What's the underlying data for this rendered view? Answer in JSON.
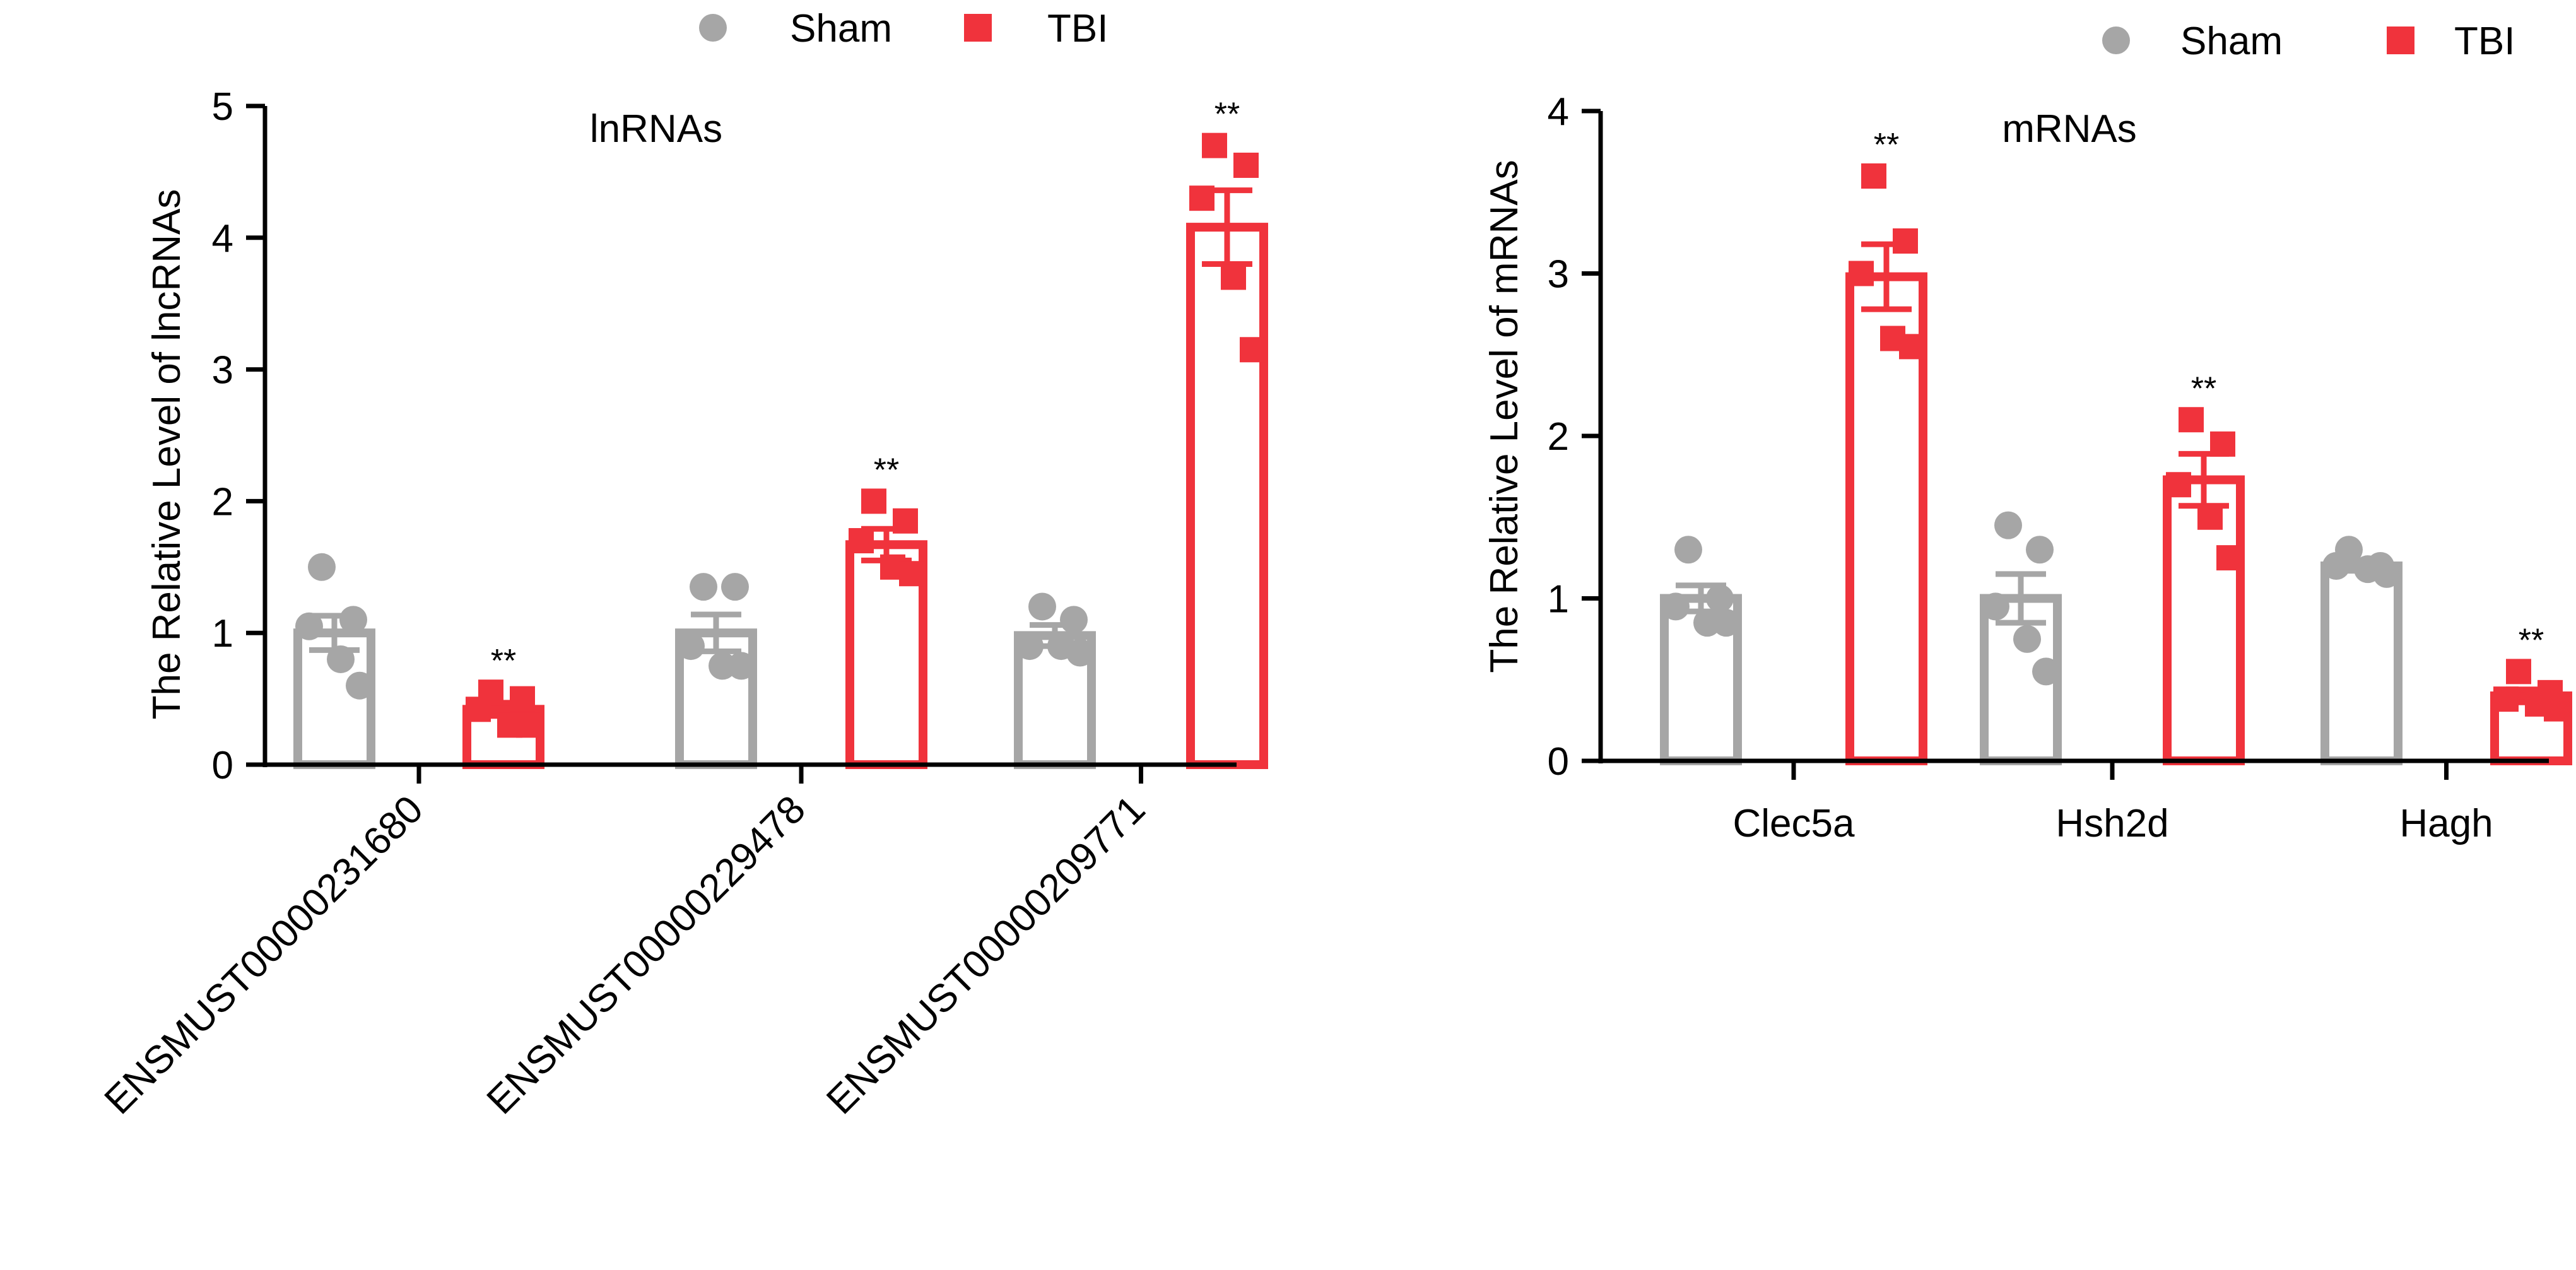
{
  "colors": {
    "sham": "#a6a6a6",
    "tbi": "#f0333c",
    "axis": "#000000"
  },
  "legend": [
    {
      "label": "Sham",
      "marker": "circle",
      "color": "#a6a6a6"
    },
    {
      "label": "TBI",
      "marker": "square",
      "color": "#f0333c"
    }
  ],
  "chart_data": [
    {
      "type": "bar",
      "title": "lnRNAs",
      "ylabel": "The Relative Level of lncRNAs",
      "ylim": [
        0,
        5
      ],
      "yticks": [
        "0",
        "1",
        "2",
        "3",
        "4",
        "5"
      ],
      "categories": [
        "ENSMUST00000231680",
        "ENSMUST00000229478",
        "ENSMUST00000209771"
      ],
      "series": [
        {
          "name": "Sham",
          "values": [
            1.0,
            1.0,
            0.98
          ],
          "sem": [
            0.13,
            0.14,
            0.08
          ],
          "points": [
            [
              1.5,
              1.1,
              1.05,
              0.8,
              0.6
            ],
            [
              1.35,
              1.35,
              0.9,
              0.75,
              0.75
            ],
            [
              1.2,
              1.1,
              0.9,
              0.9,
              0.85
            ]
          ]
        },
        {
          "name": "TBI",
          "values": [
            0.42,
            1.67,
            4.08
          ],
          "sem": [
            0.05,
            0.12,
            0.28
          ],
          "points": [
            [
              0.55,
              0.5,
              0.42,
              0.3,
              0.3
            ],
            [
              2.0,
              1.85,
              1.7,
              1.5,
              1.45
            ],
            [
              4.7,
              4.55,
              4.3,
              3.7,
              3.15
            ]
          ]
        }
      ],
      "significance": [
        "",
        "**",
        "",
        "**",
        "",
        "**"
      ]
    },
    {
      "type": "bar",
      "title": "mRNAs",
      "ylabel": "The Relative Level of mRNAs",
      "ylim": [
        0,
        4
      ],
      "yticks": [
        "0",
        "1",
        "2",
        "3",
        "4"
      ],
      "categories": [
        "Clec5a",
        "Hsh2d",
        "Hagh"
      ],
      "series": [
        {
          "name": "Sham",
          "values": [
            1.0,
            1.0,
            1.2
          ],
          "sem": [
            0.08,
            0.15,
            0.03
          ],
          "points": [
            [
              1.3,
              1.0,
              0.95,
              0.85,
              0.85
            ],
            [
              1.45,
              1.3,
              0.95,
              0.75,
              0.55
            ],
            [
              1.3,
              1.2,
              1.2,
              1.18,
              1.15
            ]
          ]
        },
        {
          "name": "TBI",
          "values": [
            2.98,
            1.73,
            0.4
          ],
          "sem": [
            0.2,
            0.16,
            0.04
          ],
          "points": [
            [
              3.6,
              3.2,
              3.0,
              2.6,
              2.55
            ],
            [
              2.1,
              1.95,
              1.7,
              1.5,
              1.25
            ],
            [
              0.55,
              0.42,
              0.38,
              0.35,
              0.32
            ]
          ]
        }
      ],
      "significance": [
        "",
        "**",
        "",
        "**",
        "",
        "**"
      ]
    }
  ]
}
